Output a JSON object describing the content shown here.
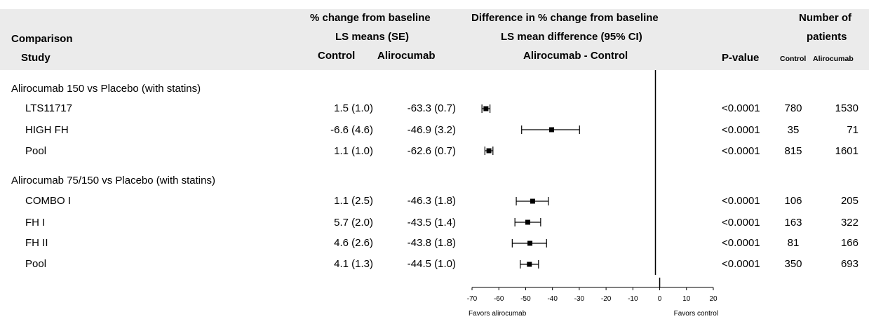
{
  "header": {
    "comparison": "Comparison",
    "study": "Study",
    "pct_change_line1": "% change from baseline",
    "pct_change_line2": "LS means (SE)",
    "control": "Control",
    "alirocumab": "Alirocumab",
    "diff_line1": "Difference in % change from baseline",
    "diff_line2": "LS mean difference (95% CI)",
    "diff_line3": "Alirocumab - Control",
    "pvalue": "P-value",
    "num_line1": "Number of",
    "num_line2": "patients",
    "num_control": "Control",
    "num_alirocumab": "Alirocumab"
  },
  "groups": [
    {
      "title": "Alirocumab 150 vs Placebo (with statins)",
      "rows": [
        {
          "study": "LTS11717",
          "control": "1.5 (1.0)",
          "alirocumab": "-63.3 (0.7)",
          "pvalue": "<0.0001",
          "n_control": "780",
          "n_alirocumab": "1530"
        },
        {
          "study": "HIGH FH",
          "control": "-6.6 (4.6)",
          "alirocumab": "-46.9 (3.2)",
          "pvalue": "<0.0001",
          "n_control": "35",
          "n_alirocumab": "71"
        },
        {
          "study": "Pool",
          "control": "1.1 (1.0)",
          "alirocumab": "-62.6 (0.7)",
          "pvalue": "<0.0001",
          "n_control": "815",
          "n_alirocumab": "1601"
        }
      ]
    },
    {
      "title": "Alirocumab 75/150 vs Placebo (with statins)",
      "rows": [
        {
          "study": "COMBO I",
          "control": "1.1 (2.5)",
          "alirocumab": "-46.3 (1.8)",
          "pvalue": "<0.0001",
          "n_control": "106",
          "n_alirocumab": "205"
        },
        {
          "study": "FH I",
          "control": "5.7 (2.0)",
          "alirocumab": "-43.5 (1.4)",
          "pvalue": "<0.0001",
          "n_control": "163",
          "n_alirocumab": "322"
        },
        {
          "study": "FH II",
          "control": "4.6 (2.6)",
          "alirocumab": "-43.8 (1.8)",
          "pvalue": "<0.0001",
          "n_control": "81",
          "n_alirocumab": "166"
        },
        {
          "study": "Pool",
          "control": "4.1 (1.3)",
          "alirocumab": "-44.5 (1.0)",
          "pvalue": "<0.0001",
          "n_control": "350",
          "n_alirocumab": "693"
        }
      ]
    }
  ],
  "chart_data": {
    "type": "forest",
    "x_ticks": [
      -70,
      -60,
      -50,
      -40,
      -30,
      -20,
      -10,
      0,
      10,
      20
    ],
    "xlim": [
      -70,
      20
    ],
    "reference_line": 0,
    "favors_left": "Favors alirocumab",
    "favors_right": "Favors control",
    "points": [
      {
        "study": "LTS11717",
        "estimate": -64.8,
        "lo": -66.3,
        "hi": -63.3
      },
      {
        "study": "HIGH FH",
        "estimate": -40.3,
        "lo": -51.5,
        "hi": -29.9
      },
      {
        "study": "Pool",
        "estimate": -63.7,
        "lo": -65.2,
        "hi": -62.2
      },
      {
        "study": "COMBO I",
        "estimate": -47.4,
        "lo": -53.5,
        "hi": -41.5
      },
      {
        "study": "FH I",
        "estimate": -49.2,
        "lo": -54.0,
        "hi": -44.4
      },
      {
        "study": "FH II",
        "estimate": -48.4,
        "lo": -55.0,
        "hi": -42.2
      },
      {
        "study": "Pool",
        "estimate": -48.6,
        "lo": -52.0,
        "hi": -45.2
      }
    ]
  }
}
